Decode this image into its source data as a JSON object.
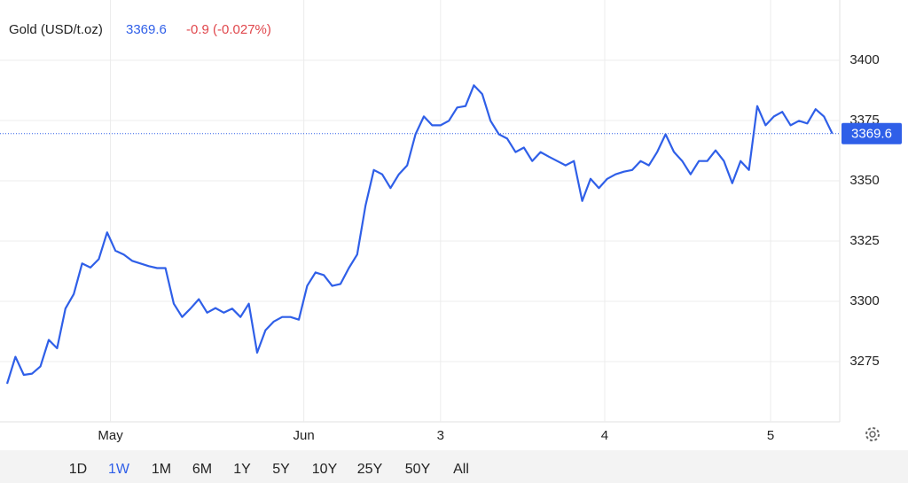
{
  "chart_data": {
    "type": "line",
    "title": "Gold (USD/t.oz)",
    "last_price": 3369.6,
    "change": "-0.9 (-0.027%)",
    "series": [
      {
        "color": "#2f5fe8",
        "values": [
          3265.8,
          3277,
          3269.5,
          3270,
          3273,
          3284,
          3280.5,
          3297,
          3303,
          3315.7,
          3314,
          3317.5,
          3328.6,
          3321,
          3319.4,
          3316.8,
          3315.7,
          3314.6,
          3313.8,
          3313.8,
          3299,
          3293.5,
          3297,
          3300.9,
          3295.3,
          3297.2,
          3295.3,
          3297,
          3293.5,
          3299,
          3278.7,
          3288,
          3291.6,
          3293.5,
          3293.5,
          3292.4,
          3306.4,
          3312,
          3310.9,
          3306.4,
          3307.2,
          3313.8,
          3319.4,
          3339.7,
          3354.5,
          3352.7,
          3347,
          3352.7,
          3356.4,
          3369.3,
          3376.7,
          3373,
          3373,
          3374.9,
          3380.4,
          3381,
          3389.6,
          3386,
          3374.9,
          3369.3,
          3367.5,
          3361.9,
          3363.8,
          3358.2,
          3361.9,
          3360,
          3358.2,
          3356.4,
          3358.2,
          3341.6,
          3350.8,
          3347,
          3350.8,
          3352.7,
          3353.8,
          3354.5,
          3358.2,
          3356.4,
          3362,
          3369.3,
          3362,
          3358.2,
          3352.7,
          3358.2,
          3358.2,
          3362.6,
          3358.2,
          3349,
          3358.2,
          3354.5,
          3381,
          3373,
          3376.7,
          3378.6,
          3373,
          3374.9,
          3373.8,
          3379.7,
          3376.7,
          3369.6
        ]
      }
    ],
    "xlim": [
      0,
      100
    ],
    "xticks": [
      {
        "value": 12.4,
        "label": "May"
      },
      {
        "value": 35.6,
        "label": "Jun"
      },
      {
        "value": 52,
        "label": "3"
      },
      {
        "value": 71.7,
        "label": "4"
      },
      {
        "value": 91.6,
        "label": "5"
      }
    ],
    "ylim": [
      3250,
      3425
    ],
    "yticks": [
      3275,
      3300,
      3325,
      3350,
      3375,
      3400
    ],
    "grid": true,
    "range_buttons": [
      "1D",
      "1W",
      "1M",
      "6M",
      "1Y",
      "5Y",
      "10Y",
      "25Y",
      "50Y",
      "All"
    ]
  }
}
